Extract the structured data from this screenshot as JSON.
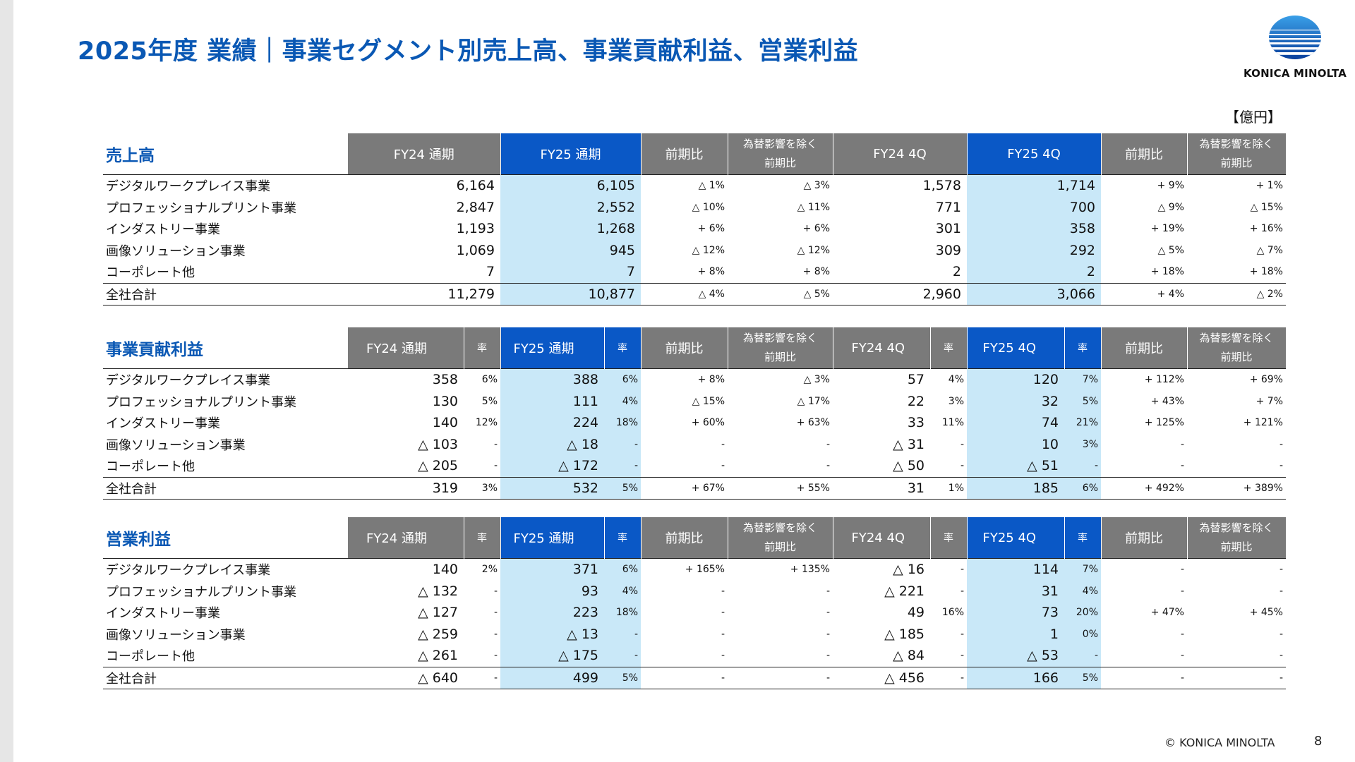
{
  "title": "2025年度 業績｜事業セグメント別売上高、事業貢献利益、営業利益",
  "logo_text": "KONICA MINOLTA",
  "unit": "【億円】",
  "headers": {
    "fy24_full": "FY24 通期",
    "fy25_full": "FY25 通期",
    "yoy": "前期比",
    "fx_line1": "為替影響を除く",
    "fx_line2": "前期比",
    "fy24_4q": "FY24 4Q",
    "fy25_4q": "FY25 4Q",
    "rate": "率"
  },
  "sections": [
    {
      "name": "売上高",
      "rows": [
        {
          "label": "デジタルワークプレイス事業",
          "fy24": "6,164",
          "fy25": "6,105",
          "yoy": "△ 1%",
          "fx": "△ 3%",
          "q24": "1,578",
          "q25": "1,714",
          "qyoy": "+ 9%",
          "qfx": "+ 1%"
        },
        {
          "label": "プロフェッショナルプリント事業",
          "fy24": "2,847",
          "fy25": "2,552",
          "yoy": "△ 10%",
          "fx": "△ 11%",
          "q24": "771",
          "q25": "700",
          "qyoy": "△ 9%",
          "qfx": "△ 15%"
        },
        {
          "label": "インダストリー事業",
          "fy24": "1,193",
          "fy25": "1,268",
          "yoy": "+ 6%",
          "fx": "+ 6%",
          "q24": "301",
          "q25": "358",
          "qyoy": "+ 19%",
          "qfx": "+ 16%"
        },
        {
          "label": "画像ソリューション事業",
          "fy24": "1,069",
          "fy25": "945",
          "yoy": "△ 12%",
          "fx": "△ 12%",
          "q24": "309",
          "q25": "292",
          "qyoy": "△ 5%",
          "qfx": "△ 7%"
        },
        {
          "label": "コーポレート他",
          "fy24": "7",
          "fy25": "7",
          "yoy": "+ 8%",
          "fx": "+ 8%",
          "q24": "2",
          "q25": "2",
          "qyoy": "+ 18%",
          "qfx": "+ 18%"
        },
        {
          "label": "全社合計",
          "fy24": "11,279",
          "fy25": "10,877",
          "yoy": "△ 4%",
          "fx": "△ 5%",
          "q24": "2,960",
          "q25": "3,066",
          "qyoy": "+ 4%",
          "qfx": "△ 2%"
        }
      ]
    },
    {
      "name": "事業貢献利益",
      "rows": [
        {
          "label": "デジタルワークプレイス事業",
          "fy24": "358",
          "r24": "6%",
          "fy25": "388",
          "r25": "6%",
          "yoy": "+ 8%",
          "fx": "△ 3%",
          "q24": "57",
          "qr24": "4%",
          "q25": "120",
          "qr25": "7%",
          "qyoy": "+ 112%",
          "qfx": "+ 69%"
        },
        {
          "label": "プロフェッショナルプリント事業",
          "fy24": "130",
          "r24": "5%",
          "fy25": "111",
          "r25": "4%",
          "yoy": "△ 15%",
          "fx": "△ 17%",
          "q24": "22",
          "qr24": "3%",
          "q25": "32",
          "qr25": "5%",
          "qyoy": "+ 43%",
          "qfx": "+ 7%"
        },
        {
          "label": "インダストリー事業",
          "fy24": "140",
          "r24": "12%",
          "fy25": "224",
          "r25": "18%",
          "yoy": "+ 60%",
          "fx": "+ 63%",
          "q24": "33",
          "qr24": "11%",
          "q25": "74",
          "qr25": "21%",
          "qyoy": "+ 125%",
          "qfx": "+ 121%"
        },
        {
          "label": "画像ソリューション事業",
          "fy24": "△ 103",
          "r24": "-",
          "fy25": "△ 18",
          "r25": "-",
          "yoy": "-",
          "fx": "-",
          "q24": "△ 31",
          "qr24": "-",
          "q25": "10",
          "qr25": "3%",
          "qyoy": "-",
          "qfx": "-"
        },
        {
          "label": "コーポレート他",
          "fy24": "△ 205",
          "r24": "-",
          "fy25": "△ 172",
          "r25": "-",
          "yoy": "-",
          "fx": "-",
          "q24": "△ 50",
          "qr24": "-",
          "q25": "△ 51",
          "qr25": "-",
          "qyoy": "-",
          "qfx": "-"
        },
        {
          "label": "全社合計",
          "fy24": "319",
          "r24": "3%",
          "fy25": "532",
          "r25": "5%",
          "yoy": "+ 67%",
          "fx": "+ 55%",
          "q24": "31",
          "qr24": "1%",
          "q25": "185",
          "qr25": "6%",
          "qyoy": "+ 492%",
          "qfx": "+ 389%"
        }
      ]
    },
    {
      "name": "営業利益",
      "rows": [
        {
          "label": "デジタルワークプレイス事業",
          "fy24": "140",
          "r24": "2%",
          "fy25": "371",
          "r25": "6%",
          "yoy": "+ 165%",
          "fx": "+ 135%",
          "q24": "△ 16",
          "qr24": "-",
          "q25": "114",
          "qr25": "7%",
          "qyoy": "-",
          "qfx": "-"
        },
        {
          "label": "プロフェッショナルプリント事業",
          "fy24": "△ 132",
          "r24": "-",
          "fy25": "93",
          "r25": "4%",
          "yoy": "-",
          "fx": "-",
          "q24": "△ 221",
          "qr24": "-",
          "q25": "31",
          "qr25": "4%",
          "qyoy": "-",
          "qfx": "-"
        },
        {
          "label": "インダストリー事業",
          "fy24": "△ 127",
          "r24": "-",
          "fy25": "223",
          "r25": "18%",
          "yoy": "-",
          "fx": "-",
          "q24": "49",
          "qr24": "16%",
          "q25": "73",
          "qr25": "20%",
          "qyoy": "+ 47%",
          "qfx": "+ 45%"
        },
        {
          "label": "画像ソリューション事業",
          "fy24": "△ 259",
          "r24": "-",
          "fy25": "△ 13",
          "r25": "-",
          "yoy": "-",
          "fx": "-",
          "q24": "△ 185",
          "qr24": "-",
          "q25": "1",
          "qr25": "0%",
          "qyoy": "-",
          "qfx": "-"
        },
        {
          "label": "コーポレート他",
          "fy24": "△ 261",
          "r24": "-",
          "fy25": "△ 175",
          "r25": "-",
          "yoy": "-",
          "fx": "-",
          "q24": "△ 84",
          "qr24": "-",
          "q25": "△ 53",
          "qr25": "-",
          "qyoy": "-",
          "qfx": "-"
        },
        {
          "label": "全社合計",
          "fy24": "△ 640",
          "r24": "-",
          "fy25": "499",
          "r25": "5%",
          "yoy": "-",
          "fx": "-",
          "q24": "△ 456",
          "qr24": "-",
          "q25": "166",
          "qr25": "5%",
          "qyoy": "-",
          "qfx": "-"
        }
      ]
    }
  ],
  "footer": "© KONICA MINOLTA",
  "page_number": "8"
}
